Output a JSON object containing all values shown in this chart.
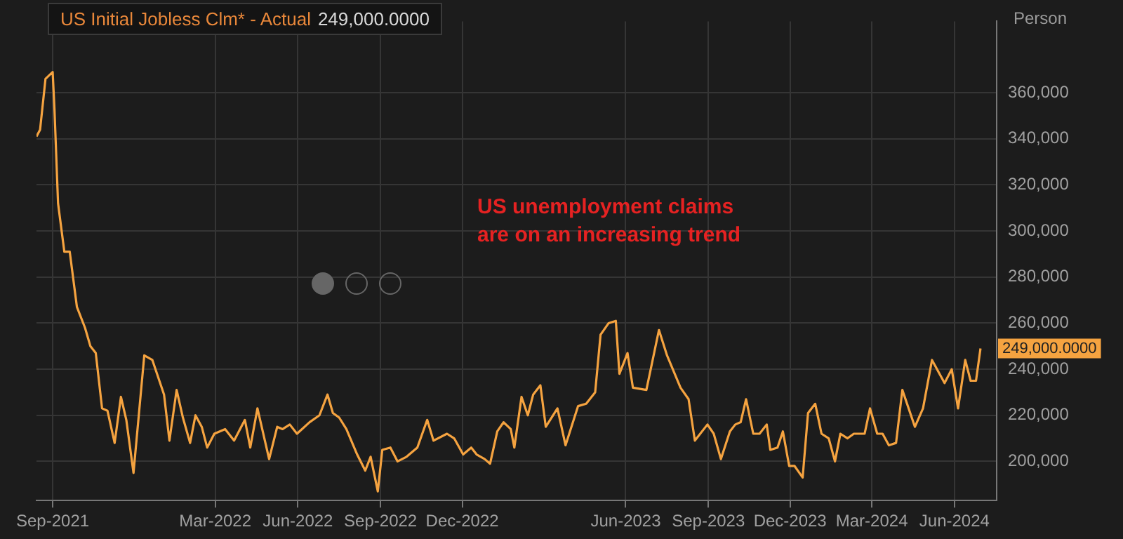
{
  "chart_data": {
    "type": "line",
    "title": "US Initial Jobless Clm* - Actual",
    "subtitle": "249,000.0000",
    "ylabel": "Person",
    "annotations": [
      "US unemployment claims\nare on an increasing trend",
      "249,000.0000"
    ],
    "grid": true,
    "legend": false,
    "marker": "none",
    "line_style": "solid",
    "xlim": [
      "2021-08-14",
      "2024-07-18"
    ],
    "xticks": [
      {
        "value": "2021-09-01",
        "label": "Sep-2021"
      },
      {
        "value": "2022-03-01",
        "label": "Mar-2022"
      },
      {
        "value": "2022-06-01",
        "label": "Jun-2022"
      },
      {
        "value": "2022-09-01",
        "label": "Sep-2022"
      },
      {
        "value": "2022-12-01",
        "label": "Dec-2022"
      },
      {
        "value": "2023-06-01",
        "label": "Jun-2023"
      },
      {
        "value": "2023-09-01",
        "label": "Sep-2023"
      },
      {
        "value": "2023-12-01",
        "label": "Dec-2023"
      },
      {
        "value": "2024-03-01",
        "label": "Mar-2024"
      },
      {
        "value": "2024-06-01",
        "label": "Jun-2024"
      }
    ],
    "ylim": [
      183000,
      391000
    ],
    "yticks": [
      {
        "value": 200000,
        "label": "200,000"
      },
      {
        "value": 220000,
        "label": "220,000"
      },
      {
        "value": 240000,
        "label": "240,000"
      },
      {
        "value": 260000,
        "label": "260,000"
      },
      {
        "value": 280000,
        "label": "280,000"
      },
      {
        "value": 300000,
        "label": "300,000"
      },
      {
        "value": 320000,
        "label": "320,000"
      },
      {
        "value": 340000,
        "label": "340,000"
      },
      {
        "value": 360000,
        "label": "360,000"
      }
    ],
    "x": [
      "2021-08-14",
      "2021-08-18",
      "2021-08-24",
      "2021-09-01",
      "2021-09-03",
      "2021-09-07",
      "2021-09-14",
      "2021-09-20",
      "2021-09-28",
      "2021-10-07",
      "2021-10-13",
      "2021-10-19",
      "2021-10-26",
      "2021-11-01",
      "2021-11-09",
      "2021-11-16",
      "2021-11-22",
      "2021-11-30",
      "2021-12-12",
      "2021-12-21",
      "2022-01-03",
      "2022-01-09",
      "2022-01-17",
      "2022-01-24",
      "2022-02-01",
      "2022-02-07",
      "2022-02-14",
      "2022-02-20",
      "2022-02-28",
      "2022-03-12",
      "2022-03-22",
      "2022-04-03",
      "2022-04-09",
      "2022-04-17",
      "2022-04-30",
      "2022-05-09",
      "2022-05-15",
      "2022-05-23",
      "2022-05-31",
      "2022-06-14",
      "2022-06-25",
      "2022-07-04",
      "2022-07-10",
      "2022-07-17",
      "2022-07-25",
      "2022-08-06",
      "2022-08-15",
      "2022-08-21",
      "2022-08-29",
      "2022-09-03",
      "2022-09-12",
      "2022-09-20",
      "2022-09-30",
      "2022-10-12",
      "2022-10-23",
      "2022-10-30",
      "2022-11-14",
      "2022-11-22",
      "2022-12-02",
      "2022-12-11",
      "2022-12-17",
      "2022-12-26",
      "2023-01-01",
      "2023-01-09",
      "2023-01-16",
      "2023-01-24",
      "2023-01-28",
      "2023-02-05",
      "2023-02-12",
      "2023-02-18",
      "2023-02-26",
      "2023-03-04",
      "2023-03-17",
      "2023-03-26",
      "2023-04-09",
      "2023-04-18",
      "2023-04-28",
      "2023-05-04",
      "2023-05-13",
      "2023-05-21",
      "2023-05-25",
      "2023-06-03",
      "2023-06-09",
      "2023-06-24",
      "2023-07-08",
      "2023-07-17",
      "2023-08-01",
      "2023-08-10",
      "2023-08-17",
      "2023-08-31",
      "2023-09-07",
      "2023-09-15",
      "2023-09-25",
      "2023-10-01",
      "2023-10-07",
      "2023-10-13",
      "2023-10-21",
      "2023-10-28",
      "2023-11-05",
      "2023-11-09",
      "2023-11-17",
      "2023-11-23",
      "2023-11-30",
      "2023-12-06",
      "2023-12-15",
      "2023-12-21",
      "2023-12-29",
      "2024-01-05",
      "2024-01-13",
      "2024-01-20",
      "2024-01-26",
      "2024-02-03",
      "2024-02-10",
      "2024-02-22",
      "2024-02-28",
      "2024-03-07",
      "2024-03-13",
      "2024-03-20",
      "2024-03-28",
      "2024-04-04",
      "2024-04-18",
      "2024-04-27",
      "2024-05-07",
      "2024-05-21",
      "2024-05-29",
      "2024-06-05",
      "2024-06-13",
      "2024-06-19",
      "2024-06-25",
      "2024-06-30"
    ],
    "series": [
      {
        "color": "#f5a340",
        "values": [
          341000,
          344000,
          366000,
          369000,
          353000,
          312000,
          291000,
          291000,
          267000,
          258000,
          250000,
          247000,
          223000,
          222000,
          208000,
          228000,
          218000,
          195000,
          246000,
          244000,
          229000,
          209000,
          231000,
          219000,
          208000,
          220000,
          215000,
          206000,
          212000,
          214000,
          209000,
          218000,
          206000,
          223000,
          201000,
          215000,
          214000,
          216000,
          212000,
          217000,
          220000,
          229000,
          221000,
          219000,
          214000,
          203000,
          196000,
          202000,
          187000,
          205000,
          206000,
          200000,
          202000,
          206000,
          218000,
          209000,
          212000,
          210000,
          203000,
          206000,
          203000,
          201000,
          199000,
          213000,
          217000,
          214000,
          206000,
          228000,
          220000,
          229000,
          233000,
          215000,
          223000,
          207000,
          224000,
          225000,
          230000,
          255000,
          260000,
          261000,
          238000,
          247000,
          232000,
          231000,
          257000,
          246000,
          232000,
          227000,
          209000,
          216000,
          212000,
          201000,
          213000,
          216000,
          217000,
          227000,
          212000,
          212000,
          216000,
          205000,
          206000,
          213000,
          198000,
          198000,
          193000,
          221000,
          225000,
          212000,
          210000,
          200000,
          212000,
          210000,
          212000,
          212000,
          223000,
          212000,
          212000,
          207000,
          208000,
          231000,
          215000,
          223000,
          244000,
          234000,
          240000,
          223000,
          244000,
          235000,
          235000,
          249000
        ]
      }
    ]
  }
}
